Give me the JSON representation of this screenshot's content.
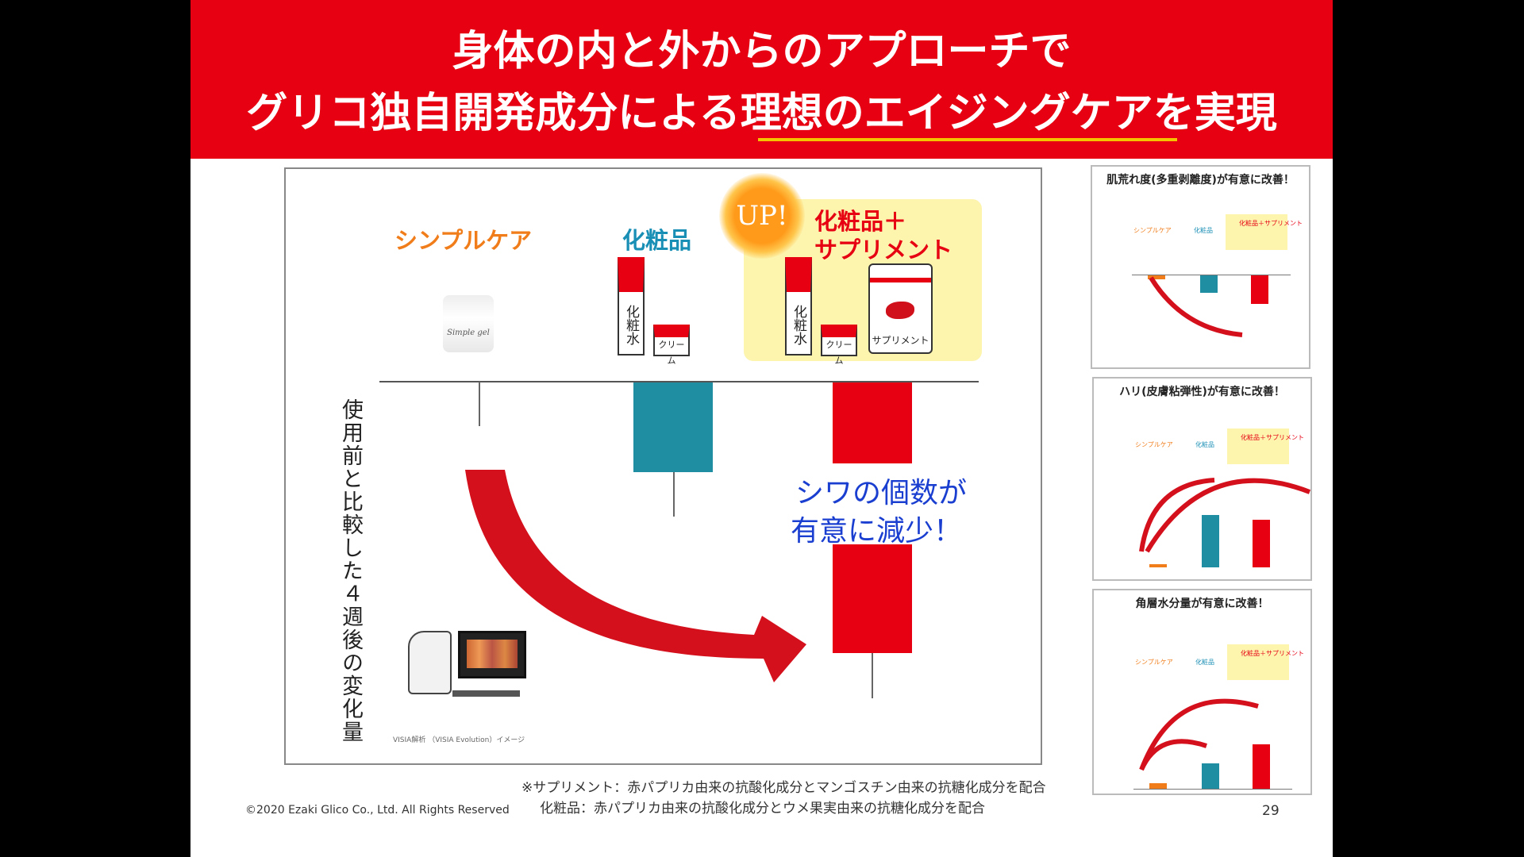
{
  "header": {
    "title_line1": "身体の内と外からのアプローチで",
    "title_line2": "グリコ独自開発成分による理想のエイジングケアを実現"
  },
  "chart": {
    "groups": [
      {
        "label": "シンプルケア",
        "color": "#f07d1a"
      },
      {
        "label": "化粧品",
        "color": "#1a8fb5"
      },
      {
        "label": "化粧品＋",
        "label2": "サプリメント",
        "color": "#e60012"
      }
    ],
    "up_badge": "UP!",
    "y_label": "使用前と比較した４週後の変化量",
    "callout_line1": "シワの個数が",
    "callout_line2": "有意に減少！",
    "products": {
      "gel": "Simple gel",
      "lotion": "化粧水",
      "cream": "クリーム",
      "supplement": "サプリメント"
    },
    "visia_caption": "VISIA解析 （VISIA Evolution）イメージ",
    "bar_color_teal": "#1f8ea3",
    "bar_color_red": "#e60012",
    "callout_color": "#1a3fd0"
  },
  "thumbnails": [
    {
      "title": "肌荒れ度(多重剥離度)が有意に改善！"
    },
    {
      "title": "ハリ(皮膚粘弾性)が有意に改善！"
    },
    {
      "title": "角層水分量が有意に改善！"
    }
  ],
  "thumb_labels": {
    "simple": "シンプルケア",
    "cosme": "化粧品",
    "combo": "化粧品＋サプリメント",
    "up": "UP!"
  },
  "footer": {
    "note1": "※サプリメント：赤パプリカ由来の抗酸化成分とマンゴスチン由来の抗糖化成分を配合",
    "note2": "化粧品：赤パプリカ由来の抗酸化成分とウメ果実由来の抗糖化成分を配合",
    "copyright": "©2020 Ezaki Glico Co., Ltd. All Rights Reserved",
    "page": "29"
  }
}
